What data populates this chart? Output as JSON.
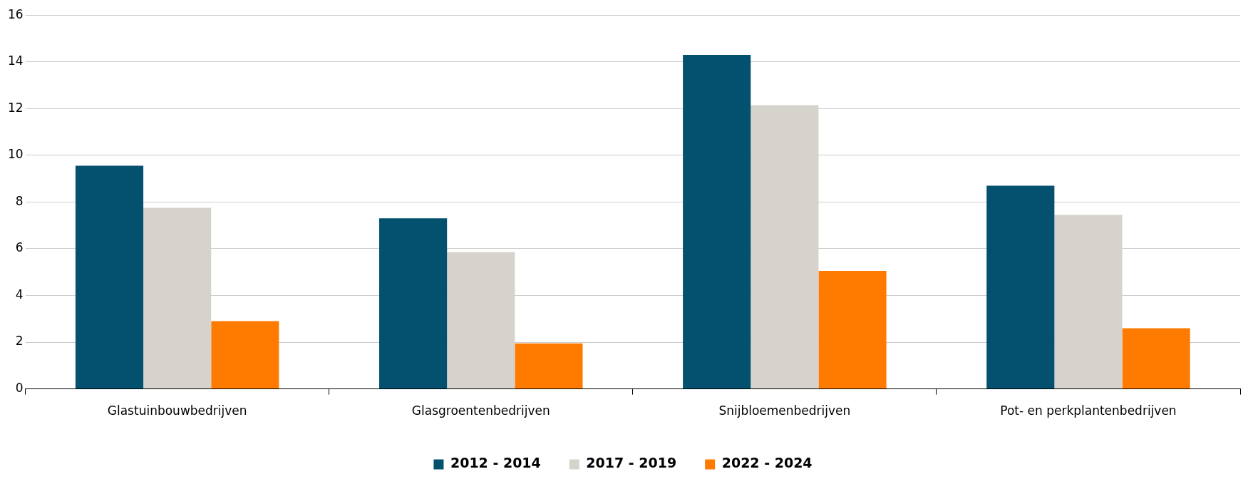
{
  "chart_data": {
    "type": "bar",
    "categories": [
      "Glastuinbouwbedrijven",
      "Glasgroentenbedrijven",
      "Snijbloemenbedrijven",
      "Pot- en perkplantenbedrijven"
    ],
    "series": [
      {
        "name": "2012 - 2014",
        "color": "#03506f",
        "values": [
          9.55,
          7.3,
          14.3,
          8.7
        ]
      },
      {
        "name": "2017 - 2019",
        "color": "#d6d3cc",
        "values": [
          7.75,
          5.85,
          12.15,
          7.45
        ]
      },
      {
        "name": "2022 - 2024",
        "color": "#ff7b00",
        "values": [
          2.9,
          1.95,
          5.05,
          2.6
        ]
      }
    ],
    "ylim": [
      0,
      16
    ],
    "yticks": [
      0,
      2,
      4,
      6,
      8,
      10,
      12,
      14,
      16
    ],
    "grid": "y",
    "legend": "bottom"
  }
}
